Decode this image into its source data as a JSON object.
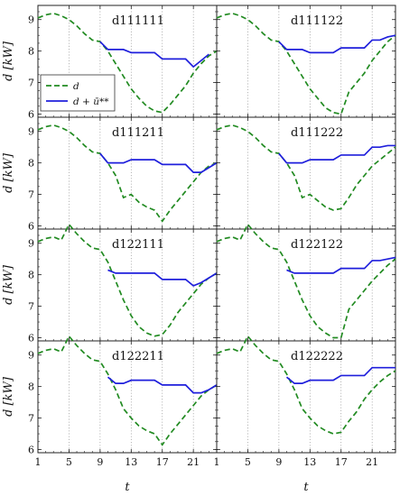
{
  "chart_data": {
    "type": "line",
    "layout": "4 rows x 2 columns of small-multiple panels with shared axes",
    "xlabel": "t",
    "ylabel": "d [kW]",
    "xlim": [
      1,
      24
    ],
    "ylim": [
      5.9,
      9.45
    ],
    "xticks": [
      1,
      5,
      9,
      13,
      17,
      21
    ],
    "yticks": [
      6,
      7,
      8,
      9
    ],
    "grid": "vertical dotted lines at x = 5, 9, 13, 17, 21",
    "legend": {
      "placement": "inside first panel, center-left",
      "entries": [
        {
          "label": "d",
          "style": "dashed",
          "color": "#228b22"
        },
        {
          "label": "d + ū**",
          "style": "solid",
          "color": "#1f1fdc"
        }
      ]
    },
    "colors": {
      "d": "#228b22",
      "d_plus_u": "#1f1fdc"
    },
    "x": [
      1,
      2,
      3,
      4,
      5,
      6,
      7,
      8,
      9,
      10,
      11,
      12,
      13,
      14,
      15,
      16,
      17,
      18,
      19,
      20,
      21,
      22,
      23,
      24
    ],
    "panels": [
      {
        "title": "d111111",
        "d": [
          9.05,
          9.15,
          9.2,
          9.12,
          9.0,
          8.8,
          8.55,
          8.35,
          8.3,
          8.0,
          7.6,
          7.2,
          6.8,
          6.5,
          6.25,
          6.1,
          6.05,
          6.3,
          6.6,
          6.9,
          7.3,
          7.6,
          7.85,
          8.0
        ],
        "d_plus_u": [
          null,
          null,
          null,
          null,
          null,
          null,
          null,
          null,
          8.3,
          8.05,
          8.05,
          8.05,
          7.95,
          7.95,
          7.95,
          7.95,
          7.75,
          7.75,
          7.75,
          7.75,
          7.5,
          7.7,
          7.9,
          null
        ]
      },
      {
        "title": "d111122",
        "d": [
          9.05,
          9.15,
          9.2,
          9.12,
          9.0,
          8.8,
          8.55,
          8.35,
          8.3,
          8.0,
          7.6,
          7.2,
          6.8,
          6.5,
          6.2,
          6.05,
          6.0,
          6.7,
          7.0,
          7.3,
          7.7,
          8.0,
          8.3,
          8.5
        ],
        "d_plus_u": [
          null,
          null,
          null,
          null,
          null,
          null,
          null,
          null,
          8.3,
          8.05,
          8.05,
          8.05,
          7.95,
          7.95,
          7.95,
          7.95,
          8.1,
          8.1,
          8.1,
          8.1,
          8.35,
          8.35,
          8.45,
          8.5
        ]
      },
      {
        "title": "d111211",
        "d": [
          9.05,
          9.15,
          9.2,
          9.12,
          9.0,
          8.8,
          8.55,
          8.35,
          8.3,
          8.0,
          7.6,
          6.9,
          7.0,
          6.75,
          6.6,
          6.5,
          6.15,
          6.5,
          6.8,
          7.1,
          7.4,
          7.7,
          7.9,
          8.0
        ],
        "d_plus_u": [
          null,
          null,
          null,
          null,
          null,
          null,
          null,
          null,
          8.3,
          8.0,
          8.0,
          8.0,
          8.1,
          8.1,
          8.1,
          8.1,
          7.95,
          7.95,
          7.95,
          7.95,
          7.7,
          7.7,
          7.85,
          8.0
        ]
      },
      {
        "title": "d111222",
        "d": [
          9.05,
          9.15,
          9.2,
          9.12,
          9.0,
          8.8,
          8.55,
          8.35,
          8.3,
          8.0,
          7.6,
          6.9,
          7.0,
          6.8,
          6.6,
          6.5,
          6.55,
          6.9,
          7.3,
          7.6,
          7.9,
          8.1,
          8.3,
          8.5
        ],
        "d_plus_u": [
          null,
          null,
          null,
          null,
          null,
          null,
          null,
          null,
          8.3,
          8.0,
          8.0,
          8.0,
          8.1,
          8.1,
          8.1,
          8.1,
          8.25,
          8.25,
          8.25,
          8.25,
          8.5,
          8.5,
          8.55,
          8.55
        ]
      },
      {
        "title": "d122111",
        "d": [
          9.05,
          9.15,
          9.2,
          9.1,
          9.6,
          9.3,
          9.05,
          8.85,
          8.8,
          8.4,
          7.8,
          7.2,
          6.7,
          6.35,
          6.15,
          6.05,
          6.1,
          6.4,
          6.8,
          7.1,
          7.4,
          7.7,
          7.9,
          8.05
        ],
        "d_plus_u": [
          null,
          null,
          null,
          null,
          null,
          null,
          null,
          null,
          null,
          8.15,
          8.05,
          8.05,
          8.05,
          8.05,
          8.05,
          8.05,
          7.85,
          7.85,
          7.85,
          7.85,
          7.65,
          7.75,
          7.9,
          8.05
        ]
      },
      {
        "title": "d122122",
        "d": [
          9.05,
          9.15,
          9.2,
          9.1,
          9.6,
          9.3,
          9.05,
          8.85,
          8.8,
          8.4,
          7.8,
          7.2,
          6.7,
          6.35,
          6.15,
          6.0,
          6.0,
          6.9,
          7.2,
          7.5,
          7.8,
          8.05,
          8.3,
          8.5
        ],
        "d_plus_u": [
          null,
          null,
          null,
          null,
          null,
          null,
          null,
          null,
          null,
          8.15,
          8.05,
          8.05,
          8.05,
          8.05,
          8.05,
          8.05,
          8.2,
          8.2,
          8.2,
          8.2,
          8.45,
          8.45,
          8.5,
          8.55
        ]
      },
      {
        "title": "d122211",
        "d": [
          9.05,
          9.15,
          9.2,
          9.1,
          9.6,
          9.3,
          9.05,
          8.85,
          8.8,
          8.4,
          7.9,
          7.3,
          7.0,
          6.75,
          6.6,
          6.5,
          6.15,
          6.5,
          6.8,
          7.1,
          7.4,
          7.7,
          7.9,
          8.05
        ],
        "d_plus_u": [
          null,
          null,
          null,
          null,
          null,
          null,
          null,
          null,
          null,
          8.3,
          8.1,
          8.1,
          8.2,
          8.2,
          8.2,
          8.2,
          8.05,
          8.05,
          8.05,
          8.05,
          7.8,
          7.8,
          7.9,
          8.05
        ]
      },
      {
        "title": "d122222",
        "d": [
          9.05,
          9.15,
          9.2,
          9.1,
          9.6,
          9.3,
          9.05,
          8.85,
          8.8,
          8.4,
          7.9,
          7.3,
          7.0,
          6.75,
          6.6,
          6.5,
          6.55,
          6.9,
          7.2,
          7.6,
          7.9,
          8.15,
          8.35,
          8.5
        ],
        "d_plus_u": [
          null,
          null,
          null,
          null,
          null,
          null,
          null,
          null,
          null,
          8.3,
          8.1,
          8.1,
          8.2,
          8.2,
          8.2,
          8.2,
          8.35,
          8.35,
          8.35,
          8.35,
          8.6,
          8.6,
          8.6,
          8.6
        ]
      }
    ]
  }
}
